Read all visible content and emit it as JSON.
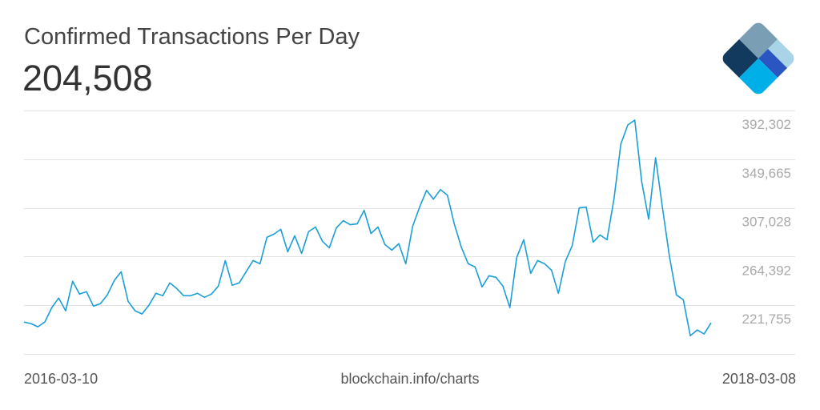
{
  "chart_data": {
    "type": "line",
    "title": "Confirmed Transactions Per Day",
    "subtitle": "204,508",
    "xlabel": "",
    "ylabel": "",
    "x_start": "2016-03-10",
    "x_end": "2018-03-08",
    "x_tick_labels": [
      "2016-03-10",
      "2018-03-08"
    ],
    "y_ticks": [
      392302,
      349665,
      307028,
      264392,
      221755
    ],
    "y_tick_labels": [
      "392,302",
      "349,665",
      "307,028",
      "264,392",
      "221,755"
    ],
    "ylim": [
      179118,
      392302
    ],
    "grid": true,
    "line_color": "#1a9fd8",
    "values": [
      207000,
      205700,
      202900,
      207100,
      219700,
      228100,
      216900,
      242700,
      231500,
      233600,
      221000,
      223100,
      230800,
      243400,
      251100,
      225200,
      216900,
      214100,
      221800,
      232200,
      230100,
      241300,
      236400,
      230100,
      230100,
      232200,
      228700,
      231500,
      238500,
      260900,
      239200,
      241300,
      251100,
      260900,
      258100,
      281200,
      284000,
      288200,
      268600,
      282600,
      267200,
      286100,
      290300,
      277700,
      272100,
      289500,
      295800,
      292300,
      293000,
      304900,
      284600,
      290300,
      274900,
      270000,
      275600,
      258100,
      290900,
      307700,
      322400,
      314700,
      323100,
      318200,
      293000,
      272800,
      258100,
      255300,
      237800,
      247600,
      246200,
      238500,
      219700,
      263700,
      279100,
      249700,
      260900,
      258100,
      252500,
      232200,
      260200,
      274200,
      307000,
      307700,
      277000,
      283300,
      279100,
      314700,
      362900,
      379700,
      383900,
      330100,
      297200,
      351000,
      307000,
      264400,
      230800,
      226600,
      195100,
      200100,
      196600,
      206400
    ]
  },
  "footer": {
    "source": "blockchain.info/charts"
  },
  "logo": {
    "name": "blockchain-logo",
    "colors": [
      "#7a9fb5",
      "#123a5e",
      "#2b55c0",
      "#a9d3e6",
      "#00aee8"
    ]
  }
}
